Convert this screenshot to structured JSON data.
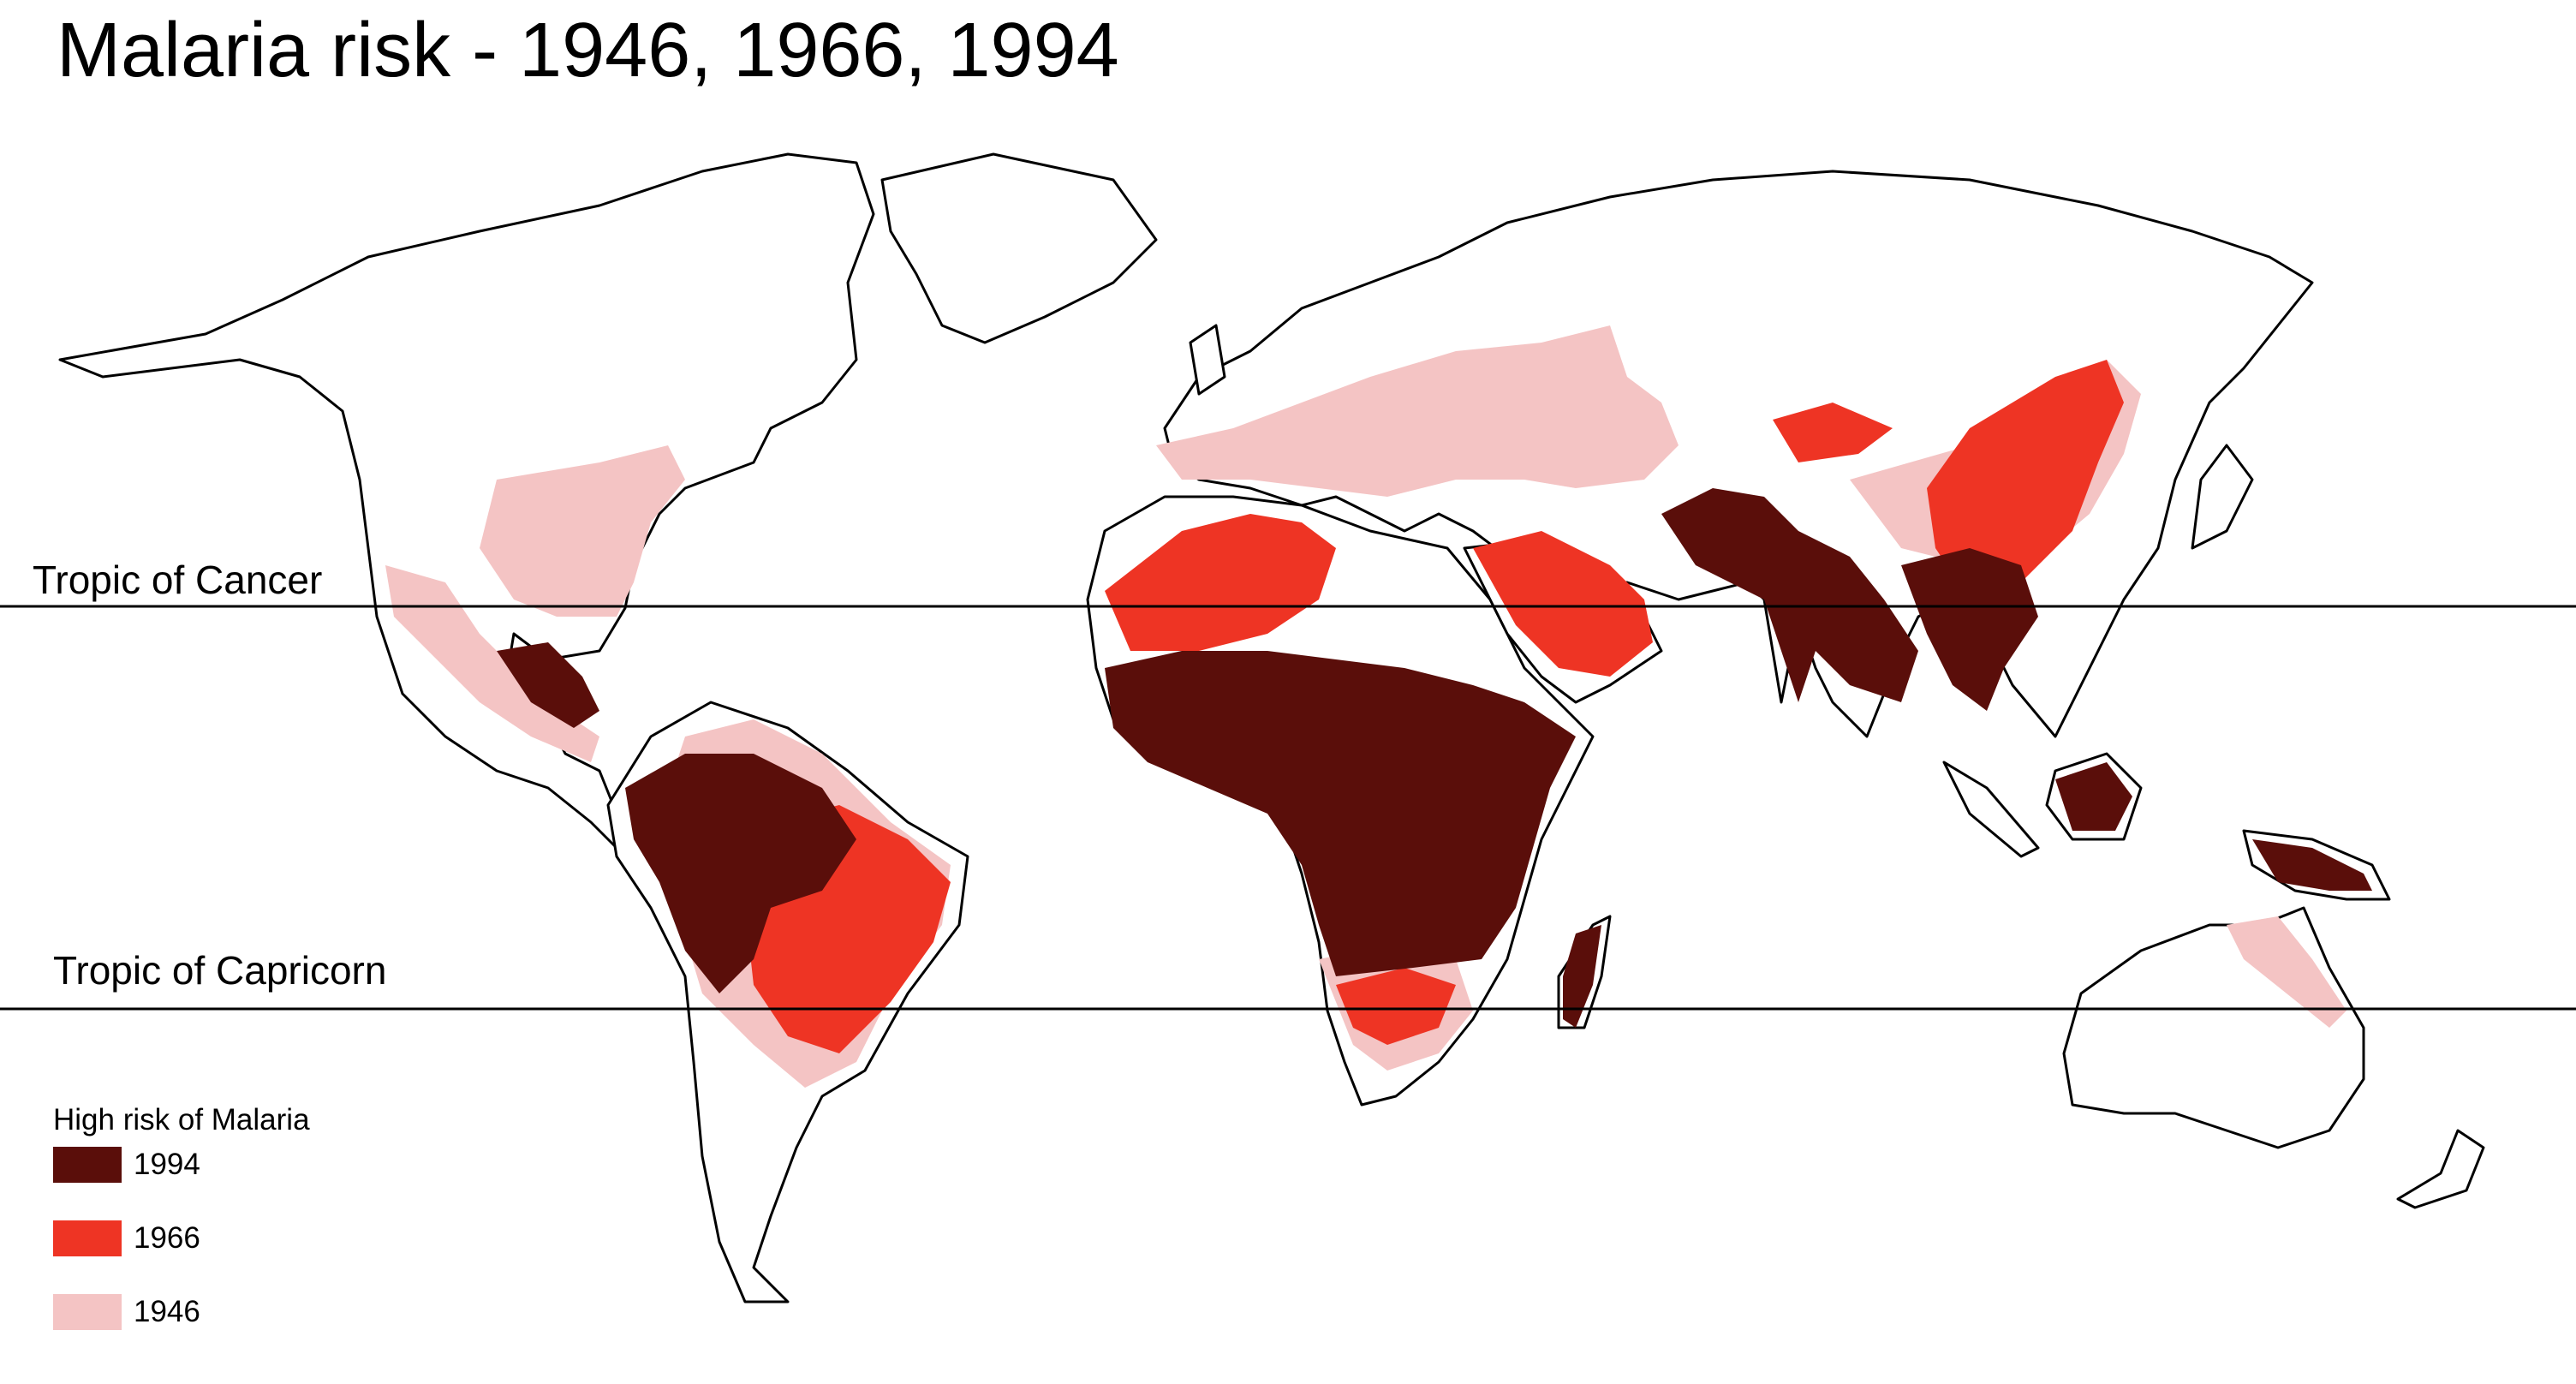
{
  "title": "Malaria risk - 1946, 1966, 1994",
  "tropics": {
    "cancer_label": "Tropic of Cancer",
    "capricorn_label": "Tropic of Capricorn"
  },
  "legend": {
    "title": "High risk of Malaria",
    "items": [
      {
        "label": "1994",
        "color": "#5a0e0a"
      },
      {
        "label": "1966",
        "color": "#ee3424"
      },
      {
        "label": "1946",
        "color": "#f4c4c4"
      }
    ]
  }
}
